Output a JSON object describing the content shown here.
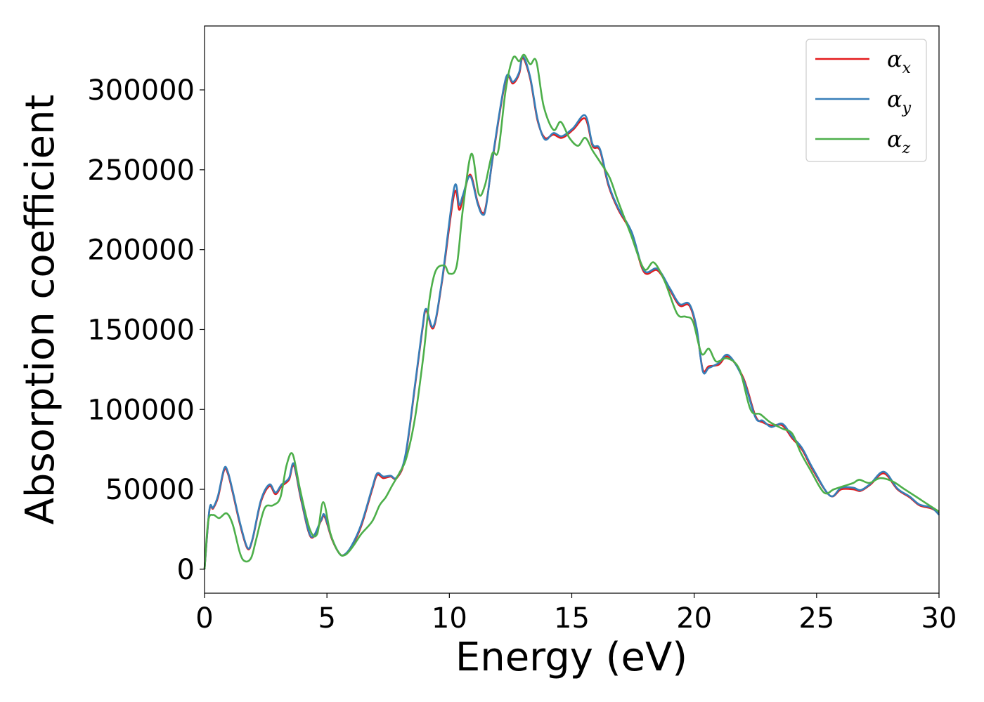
{
  "chart_data": {
    "type": "line",
    "xlabel": "Energy (eV)",
    "ylabel": "Absorption coefficient",
    "xlim": [
      0,
      30
    ],
    "ylim": [
      -15000,
      340000
    ],
    "x_ticks": [
      0,
      5,
      10,
      15,
      20,
      25,
      30
    ],
    "y_ticks": [
      0,
      50000,
      100000,
      150000,
      200000,
      250000,
      300000
    ],
    "grid": false,
    "legend_placement": "top-right",
    "series": [
      {
        "name": "α",
        "subscript": "x",
        "color": "#e41a1c",
        "x": [
          0,
          0.2,
          0.35,
          0.55,
          0.8,
          0.95,
          1.15,
          1.45,
          1.75,
          1.95,
          2.3,
          2.65,
          2.9,
          3.15,
          3.45,
          3.65,
          3.95,
          4.35,
          4.75,
          4.9,
          5.2,
          5.5,
          5.7,
          6.0,
          6.4,
          6.85,
          7.05,
          7.3,
          7.6,
          7.85,
          8.2,
          8.6,
          8.9,
          9.05,
          9.35,
          9.7,
          10.2,
          10.4,
          10.55,
          10.85,
          11.15,
          11.35,
          11.5,
          11.8,
          12.3,
          12.6,
          12.85,
          13.0,
          13.3,
          13.6,
          13.9,
          14.25,
          14.6,
          15.05,
          15.55,
          15.85,
          16.15,
          16.5,
          16.9,
          17.45,
          17.95,
          18.5,
          19.0,
          19.4,
          19.8,
          20.1,
          20.35,
          20.6,
          21.0,
          21.4,
          22.0,
          22.5,
          22.8,
          23.15,
          23.6,
          24.0,
          24.4,
          24.85,
          25.55,
          26.0,
          26.5,
          26.8,
          27.2,
          27.75,
          28.3,
          28.8,
          29.2,
          29.7,
          30.0
        ],
        "values": [
          0,
          37000,
          38000,
          45000,
          62000,
          60000,
          48000,
          28000,
          13000,
          18000,
          42000,
          52000,
          47000,
          52000,
          56000,
          65000,
          43000,
          20000,
          30000,
          33000,
          19000,
          10000,
          9000,
          14000,
          27000,
          50000,
          59000,
          57000,
          58000,
          57000,
          70000,
          115000,
          150000,
          162000,
          151000,
          180000,
          235000,
          225000,
          232000,
          247000,
          230000,
          223000,
          228000,
          260000,
          306000,
          304000,
          310000,
          320000,
          307000,
          281000,
          270000,
          272000,
          270000,
          275000,
          282000,
          265000,
          262000,
          240000,
          225000,
          210000,
          186000,
          187000,
          175000,
          165000,
          165000,
          150000,
          125000,
          127000,
          128000,
          133000,
          120000,
          96000,
          92000,
          90000,
          90000,
          82000,
          75000,
          62000,
          46000,
          50000,
          50000,
          49000,
          53000,
          60000,
          50000,
          45000,
          40000,
          38000,
          35000
        ]
      },
      {
        "name": "α",
        "subscript": "y",
        "color": "#377eb8",
        "x": [
          0,
          0.2,
          0.35,
          0.55,
          0.8,
          0.95,
          1.15,
          1.45,
          1.75,
          1.95,
          2.3,
          2.65,
          2.9,
          3.15,
          3.45,
          3.65,
          3.95,
          4.35,
          4.75,
          4.9,
          5.2,
          5.5,
          5.7,
          6.0,
          6.4,
          6.85,
          7.05,
          7.3,
          7.6,
          7.85,
          8.2,
          8.6,
          8.9,
          9.05,
          9.35,
          9.7,
          10.2,
          10.4,
          10.55,
          10.85,
          11.15,
          11.35,
          11.5,
          11.8,
          12.3,
          12.6,
          12.85,
          13.0,
          13.3,
          13.6,
          13.9,
          14.25,
          14.6,
          15.05,
          15.55,
          15.85,
          16.15,
          16.5,
          16.9,
          17.45,
          17.95,
          18.5,
          19.0,
          19.4,
          19.8,
          20.1,
          20.35,
          20.6,
          21.0,
          21.4,
          22.0,
          22.5,
          22.8,
          23.15,
          23.6,
          24.0,
          24.4,
          24.85,
          25.55,
          26.0,
          26.5,
          26.8,
          27.2,
          27.75,
          28.3,
          28.8,
          29.2,
          29.7,
          30.0
        ],
        "values": [
          0,
          37500,
          38500,
          46000,
          63000,
          61000,
          49000,
          29000,
          13500,
          18500,
          43000,
          53000,
          48000,
          53000,
          57000,
          66000,
          44000,
          20500,
          30500,
          34000,
          19500,
          10000,
          9000,
          14500,
          28000,
          51000,
          60000,
          58000,
          58500,
          57500,
          71000,
          116000,
          151000,
          163000,
          152000,
          181000,
          239000,
          228000,
          234000,
          246000,
          229000,
          222000,
          227000,
          261000,
          307000,
          305000,
          311000,
          321000,
          308000,
          282000,
          269000,
          273000,
          271000,
          276000,
          284000,
          266000,
          263000,
          241000,
          226000,
          211000,
          187000,
          188000,
          176000,
          166000,
          166000,
          151000,
          124000,
          126000,
          129000,
          134000,
          119000,
          95000,
          93000,
          89000,
          91000,
          83000,
          76000,
          63000,
          46000,
          51000,
          51000,
          49500,
          53500,
          61000,
          50500,
          45500,
          40500,
          38500,
          34000
        ]
      },
      {
        "name": "α",
        "subscript": "z",
        "color": "#4daf4a",
        "x": [
          0,
          0.15,
          0.35,
          0.6,
          0.9,
          1.15,
          1.45,
          1.65,
          1.9,
          2.1,
          2.45,
          2.8,
          3.1,
          3.35,
          3.6,
          3.9,
          4.3,
          4.6,
          4.85,
          5.15,
          5.5,
          5.75,
          6.05,
          6.4,
          6.85,
          7.15,
          7.4,
          7.65,
          7.95,
          8.25,
          8.6,
          8.95,
          9.2,
          9.45,
          9.8,
          10.0,
          10.3,
          10.55,
          10.9,
          11.2,
          11.45,
          11.75,
          12.0,
          12.3,
          12.6,
          12.85,
          13.05,
          13.3,
          13.55,
          13.85,
          14.25,
          14.55,
          14.9,
          15.25,
          15.55,
          15.85,
          16.15,
          16.55,
          16.9,
          17.4,
          17.95,
          18.35,
          18.8,
          19.3,
          19.65,
          19.95,
          20.3,
          20.6,
          20.9,
          21.35,
          21.85,
          22.3,
          22.7,
          23.1,
          23.6,
          24.0,
          24.35,
          24.75,
          25.3,
          25.7,
          26.1,
          26.5,
          26.75,
          27.15,
          27.6,
          28.1,
          28.6,
          29.1,
          29.6,
          30.0
        ],
        "values": [
          0,
          30000,
          34000,
          32000,
          35000,
          28000,
          10000,
          5000,
          7000,
          18000,
          38000,
          40000,
          45000,
          65000,
          72000,
          50000,
          25000,
          22000,
          42000,
          22000,
          10000,
          9000,
          14000,
          22000,
          30000,
          40000,
          45000,
          52000,
          60000,
          70000,
          95000,
          135000,
          170000,
          187000,
          190000,
          185000,
          190000,
          225000,
          260000,
          235000,
          240000,
          260000,
          262000,
          300000,
          320000,
          318000,
          322000,
          316000,
          318000,
          290000,
          275000,
          280000,
          270000,
          265000,
          270000,
          262000,
          255000,
          245000,
          230000,
          210000,
          188000,
          192000,
          180000,
          160000,
          158000,
          155000,
          135000,
          138000,
          130000,
          132000,
          125000,
          100000,
          97000,
          92000,
          88000,
          85000,
          73000,
          62000,
          48000,
          50000,
          52000,
          54000,
          56000,
          54000,
          57000,
          55000,
          50000,
          45000,
          40000,
          36000
        ]
      }
    ]
  }
}
